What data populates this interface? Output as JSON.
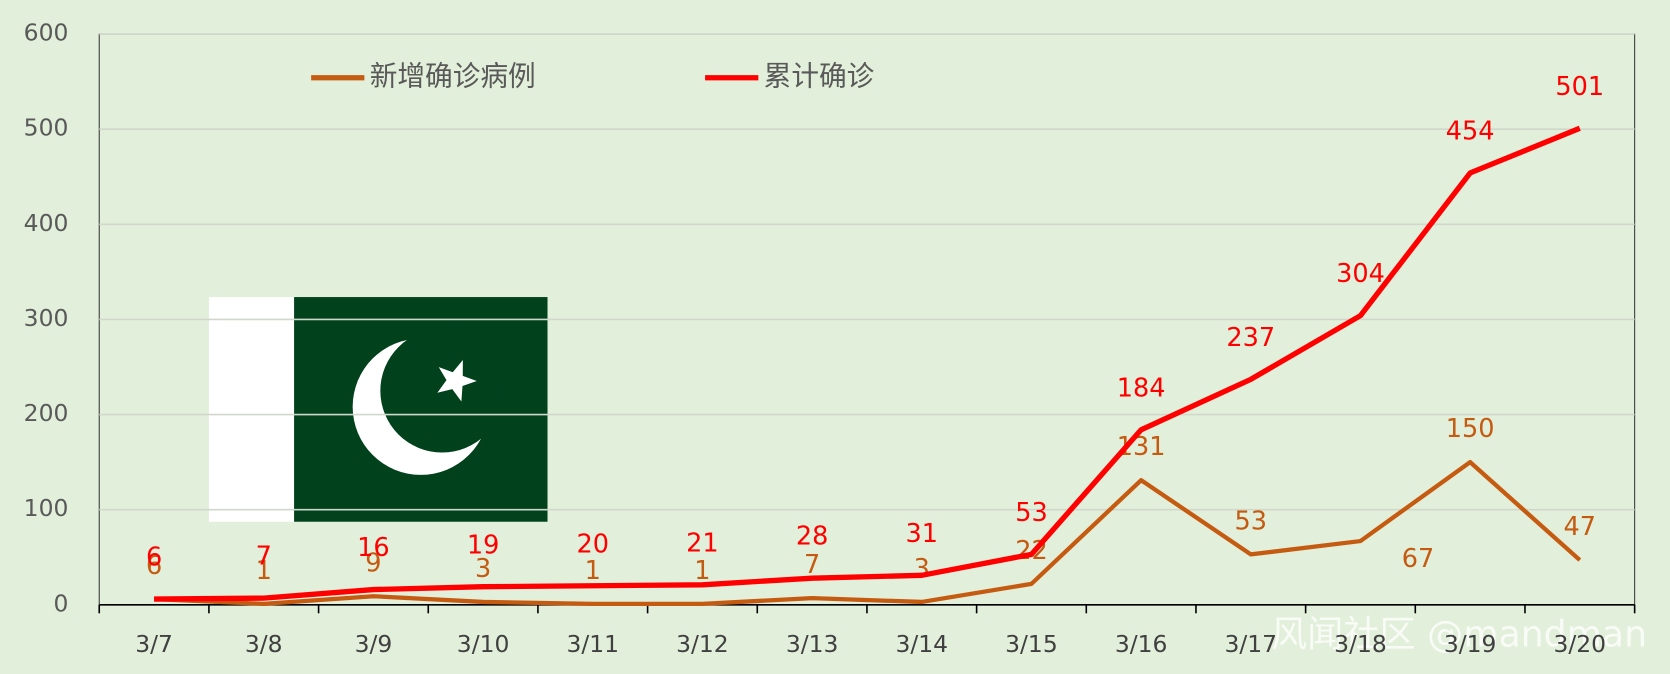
{
  "chart_data": {
    "type": "line",
    "categories": [
      "3/7",
      "3/8",
      "3/9",
      "3/10",
      "3/11",
      "3/12",
      "3/13",
      "3/14",
      "3/15",
      "3/16",
      "3/17",
      "3/18",
      "3/19",
      "3/20"
    ],
    "series": [
      {
        "name": "新增确诊病例",
        "color": "#c55a11",
        "values": [
          6,
          1,
          9,
          3,
          1,
          1,
          7,
          3,
          22,
          131,
          53,
          67,
          150,
          47
        ]
      },
      {
        "name": "累计确诊",
        "color": "#ff0000",
        "values": [
          6,
          7,
          16,
          19,
          20,
          21,
          28,
          31,
          53,
          184,
          237,
          304,
          454,
          501
        ]
      }
    ],
    "ylim": [
      0,
      600
    ],
    "yticks": [
      0,
      100,
      200,
      300,
      400,
      500,
      600
    ],
    "grid": true,
    "watermark": "风闻社区 @mandman"
  }
}
